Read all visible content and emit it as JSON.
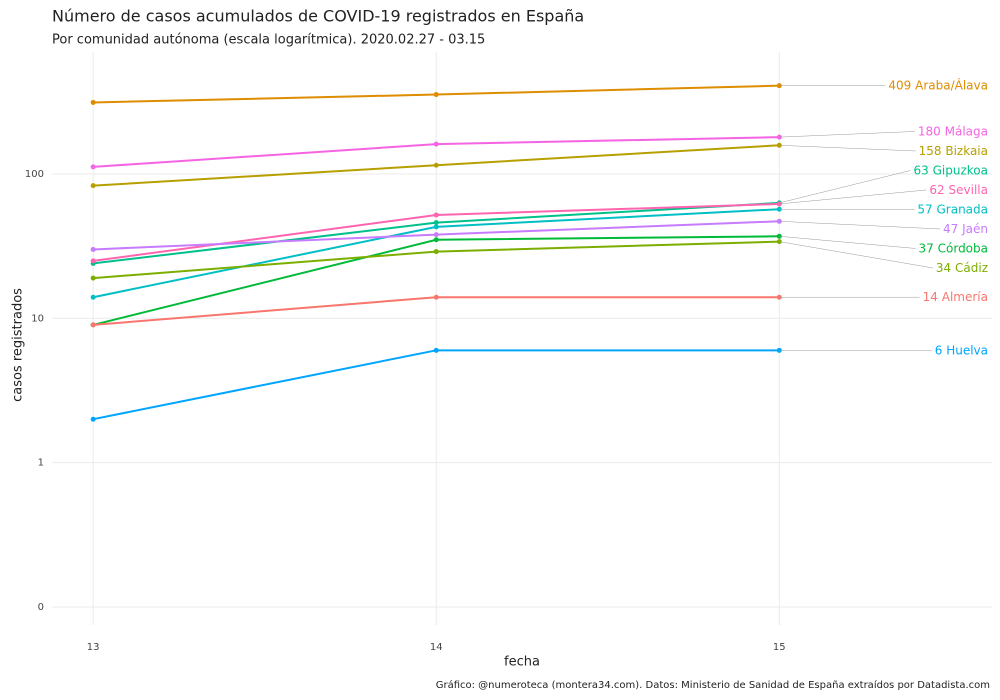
{
  "chart_data": {
    "type": "line",
    "title": "Número de casos acumulados de COVID-19 registrados en España",
    "subtitle": "Por comunidad autónoma (escala logarítmica). 2020.02.27 - 03.15",
    "x_label": "fecha",
    "y_label": "casos registrados",
    "caption": "Gráfico: @numeroteca (montera34.com). Datos: Ministerio de Sanidad de España extraídos por Datadista.com",
    "x": [
      13,
      14,
      15
    ],
    "xlim": [
      12.88,
      15.62
    ],
    "xticks": [
      13,
      14,
      15
    ],
    "ylim": [
      0.075,
      700
    ],
    "yticks": [
      {
        "value": 0.1,
        "label": "0"
      },
      1,
      10,
      100
    ],
    "log_y": true,
    "grid": true,
    "series": [
      {
        "name": "Araba/Álava",
        "color": "#DE8C00",
        "values": [
          313,
          355,
          409
        ]
      },
      {
        "name": "Málaga",
        "color": "#F564E3",
        "values": [
          112,
          161,
          180
        ]
      },
      {
        "name": "Bizkaia",
        "color": "#B79F00",
        "values": [
          83,
          115,
          158
        ]
      },
      {
        "name": "Gipuzkoa",
        "color": "#00C08B",
        "values": [
          24,
          46,
          63
        ]
      },
      {
        "name": "Sevilla",
        "color": "#FF64B0",
        "values": [
          25,
          52,
          62
        ]
      },
      {
        "name": "Granada",
        "color": "#00BFC4",
        "values": [
          14,
          43,
          57
        ]
      },
      {
        "name": "Jaén",
        "color": "#C77CFF",
        "values": [
          30,
          38,
          47
        ]
      },
      {
        "name": "Córdoba",
        "color": "#00BA38",
        "values": [
          9,
          35,
          37
        ]
      },
      {
        "name": "Cádiz",
        "color": "#7CAE00",
        "values": [
          19,
          29,
          34
        ]
      },
      {
        "name": "Almería",
        "color": "#F8766D",
        "values": [
          9,
          14,
          14
        ]
      },
      {
        "name": "Huelva",
        "color": "#00A5FF",
        "values": [
          2,
          6,
          6
        ]
      }
    ]
  }
}
